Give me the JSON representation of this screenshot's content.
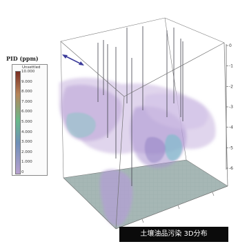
{
  "legend": {
    "title": "PID (ppm)",
    "unit": "Unsettled",
    "ticks": [
      "10.000",
      "9.000",
      "8.000",
      "7.000",
      "6.000",
      "5.000",
      "4.000",
      "3.000",
      "2.000",
      "1.000",
      "0"
    ],
    "colors": {
      "high": "#7a2e22",
      "upper": "#b7855a",
      "mid": "#68b98a",
      "lowmid": "#6f8fb8",
      "low": "#b8a2cf"
    }
  },
  "axis": {
    "z_ticks": [
      "0",
      "-1",
      "-2",
      "-3",
      "-4",
      "-5",
      "-6"
    ]
  },
  "caption": "土壤油品污染 3D分布",
  "colors": {
    "plume_purple": "#b9a3d6",
    "plume_teal": "#7fc7c0",
    "floor": "#9fb3b1",
    "wire": "#777777",
    "marker": "#3b3b9a"
  }
}
